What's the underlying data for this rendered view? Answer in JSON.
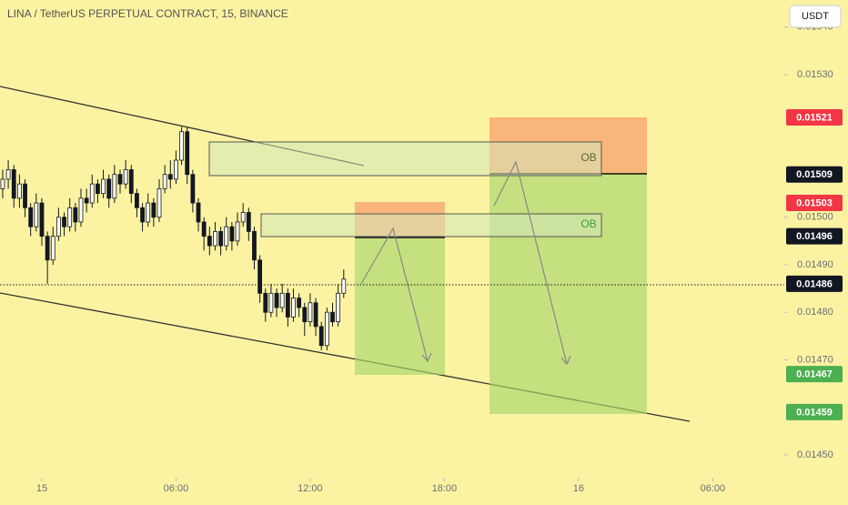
{
  "chart_data": {
    "type": "candlestick",
    "title": "LINA / TetherUS PERPETUAL CONTRACT, 15, BINANCE",
    "currency": "USDT",
    "x": [
      -1.75,
      -1.5,
      -1.25,
      -1,
      -0.75,
      -0.5,
      -0.25,
      0,
      0.25,
      0.5,
      0.75,
      1,
      1.25,
      1.5,
      1.75,
      2,
      2.25,
      2.5,
      2.75,
      3,
      3.25,
      3.5,
      3.75,
      4,
      4.25,
      4.5,
      4.75,
      5,
      5.25,
      5.5,
      5.75,
      6,
      6.25,
      6.5,
      6.75,
      7,
      7.25,
      7.5,
      7.75,
      8,
      8.25,
      8.5,
      8.75,
      9,
      9.25,
      9.5,
      9.75,
      10,
      10.25,
      10.5,
      10.75,
      11,
      11.25,
      11.5,
      11.75,
      12,
      12.25,
      12.5,
      12.75,
      13,
      13.25,
      13.5
    ],
    "open": [
      0.01506,
      0.01508,
      0.0151,
      0.01504,
      0.01507,
      0.01502,
      0.01498,
      0.01503,
      0.01496,
      0.01491,
      0.01496,
      0.015,
      0.01498,
      0.01502,
      0.01499,
      0.01504,
      0.01503,
      0.01507,
      0.01505,
      0.01508,
      0.01504,
      0.01509,
      0.01507,
      0.0151,
      0.01505,
      0.01502,
      0.01499,
      0.01503,
      0.015,
      0.01506,
      0.01509,
      0.01508,
      0.01512,
      0.01518,
      0.01509,
      0.01503,
      0.01499,
      0.01496,
      0.01494,
      0.01497,
      0.01494,
      0.01498,
      0.01495,
      0.01499,
      0.01501,
      0.01497,
      0.01491,
      0.01484,
      0.0148,
      0.01484,
      0.01481,
      0.01484,
      0.01479,
      0.01483,
      0.01481,
      0.01478,
      0.01482,
      0.01477,
      0.01473,
      0.0148,
      0.01478,
      0.01484
    ],
    "high": [
      0.0151,
      0.01512,
      0.01511,
      0.01509,
      0.01508,
      0.01503,
      0.01505,
      0.01504,
      0.01497,
      0.01498,
      0.01502,
      0.01501,
      0.01504,
      0.01503,
      0.01506,
      0.01506,
      0.01509,
      0.01508,
      0.0151,
      0.01509,
      0.01511,
      0.0151,
      0.01512,
      0.01511,
      0.01506,
      0.01503,
      0.01505,
      0.01504,
      0.01508,
      0.01511,
      0.01512,
      0.01514,
      0.01519,
      0.01519,
      0.0151,
      0.01504,
      0.015,
      0.01498,
      0.01499,
      0.01498,
      0.015,
      0.01499,
      0.01501,
      0.01503,
      0.01502,
      0.01498,
      0.01492,
      0.01485,
      0.01486,
      0.01485,
      0.01486,
      0.01485,
      0.01485,
      0.01484,
      0.01482,
      0.01484,
      0.01483,
      0.01478,
      0.01481,
      0.01482,
      0.01486,
      0.01489
    ],
    "low": [
      0.01504,
      0.01506,
      0.01502,
      0.01502,
      0.015,
      0.01496,
      0.01497,
      0.01494,
      0.01486,
      0.0149,
      0.01495,
      0.01496,
      0.01497,
      0.01497,
      0.01498,
      0.01501,
      0.01502,
      0.01503,
      0.01504,
      0.01502,
      0.01503,
      0.01505,
      0.01506,
      0.01503,
      0.015,
      0.01497,
      0.01498,
      0.01498,
      0.01499,
      0.01505,
      0.01506,
      0.01507,
      0.01511,
      0.01507,
      0.01501,
      0.01497,
      0.01493,
      0.01492,
      0.01493,
      0.01492,
      0.01493,
      0.01493,
      0.01494,
      0.01498,
      0.01495,
      0.01489,
      0.01482,
      0.01478,
      0.01479,
      0.01479,
      0.0148,
      0.01477,
      0.01478,
      0.01479,
      0.01475,
      0.01477,
      0.01475,
      0.01472,
      0.01472,
      0.01477,
      0.01477,
      0.01483
    ],
    "close": [
      0.01508,
      0.0151,
      0.01504,
      0.01507,
      0.01502,
      0.01498,
      0.01503,
      0.01496,
      0.01491,
      0.01496,
      0.015,
      0.01498,
      0.01502,
      0.01499,
      0.01504,
      0.01503,
      0.01507,
      0.01505,
      0.01508,
      0.01504,
      0.01509,
      0.01507,
      0.0151,
      0.01505,
      0.01502,
      0.01499,
      0.01503,
      0.015,
      0.01506,
      0.01509,
      0.01508,
      0.01512,
      0.01518,
      0.01509,
      0.01503,
      0.01499,
      0.01496,
      0.01494,
      0.01497,
      0.01494,
      0.01498,
      0.01495,
      0.01499,
      0.01501,
      0.01497,
      0.01491,
      0.01484,
      0.0148,
      0.01484,
      0.01481,
      0.01484,
      0.01479,
      0.01483,
      0.01481,
      0.01478,
      0.01482,
      0.01477,
      0.01473,
      0.0148,
      0.01478,
      0.01484,
      0.01487
    ],
    "xlim": [
      -1.87,
      33.2
    ],
    "xticks": [
      {
        "value": 0,
        "label": "15"
      },
      {
        "value": 6,
        "label": "06:00"
      },
      {
        "value": 12,
        "label": "12:00"
      },
      {
        "value": 18,
        "label": "18:00"
      },
      {
        "value": 24,
        "label": "16"
      },
      {
        "value": 30,
        "label": "06:00"
      }
    ],
    "ylim": [
      0.014452,
      0.015457
    ],
    "yticks": [
      {
        "value": 0.0154,
        "label": "0.01540"
      },
      {
        "value": 0.0153,
        "label": "0.01530"
      },
      {
        "value": 0.015,
        "label": "0.01500"
      },
      {
        "value": 0.0149,
        "label": "0.01490"
      },
      {
        "value": 0.0148,
        "label": "0.01480"
      },
      {
        "value": 0.0147,
        "label": "0.01470"
      },
      {
        "value": 0.0145,
        "label": "0.01450"
      }
    ],
    "price_labels": [
      {
        "value": 0.01521,
        "label": "0.01521",
        "color": "#f23645"
      },
      {
        "value": 0.01509,
        "label": "0.01509",
        "color": "#131722"
      },
      {
        "value": 0.01503,
        "label": "0.01503",
        "color": "#f23645"
      },
      {
        "value": 0.01496,
        "label": "0.01496",
        "color": "#131722"
      },
      {
        "value": 0.01486,
        "label": "0.01486",
        "color": "#131722"
      },
      {
        "value": 0.01467,
        "label": "0.01467",
        "color": "#4caf50"
      },
      {
        "value": 0.01459,
        "label": "0.01459",
        "color": "#4caf50"
      }
    ],
    "annotations": [
      "OB",
      "OB"
    ]
  }
}
